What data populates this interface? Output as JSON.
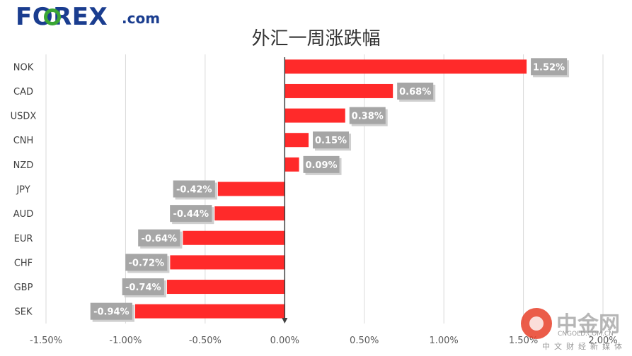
{
  "logo": {
    "text": "FOREX",
    "suffix": ".com",
    "brand_color": "#1a3d8f",
    "accent_color": "#3aa635"
  },
  "watermark": {
    "text": "中金网",
    "domain": "CNGOLD.COM.CN",
    "slogan": "中文财经新媒体"
  },
  "chart_data": {
    "type": "bar",
    "orientation": "horizontal",
    "title": "外汇一周涨跌幅",
    "categories": [
      "NOK",
      "CAD",
      "USDX",
      "CNH",
      "NZD",
      "JPY",
      "AUD",
      "EUR",
      "CHF",
      "GBP",
      "SEK"
    ],
    "values": [
      1.52,
      0.68,
      0.38,
      0.15,
      0.09,
      -0.42,
      -0.44,
      -0.64,
      -0.72,
      -0.74,
      -0.94
    ],
    "data_labels": [
      "1.52%",
      "0.68%",
      "0.38%",
      "0.15%",
      "0.09%",
      "-0.42%",
      "-0.44%",
      "-0.64%",
      "-0.72%",
      "-0.74%",
      "-0.94%"
    ],
    "x_ticks": [
      -1.5,
      -1.0,
      -0.5,
      0.0,
      0.5,
      1.0,
      1.5,
      2.0
    ],
    "x_tick_labels": [
      "-1.50%",
      "-1.00%",
      "-0.50%",
      "0.00%",
      "0.50%",
      "1.00%",
      "1.50%",
      "2.00%"
    ],
    "xlim": [
      -1.5,
      2.0
    ],
    "grid": true,
    "bar_color": "#ff2a2a",
    "label_box_color": "#a6a6a6",
    "xlabel": "",
    "ylabel": ""
  }
}
